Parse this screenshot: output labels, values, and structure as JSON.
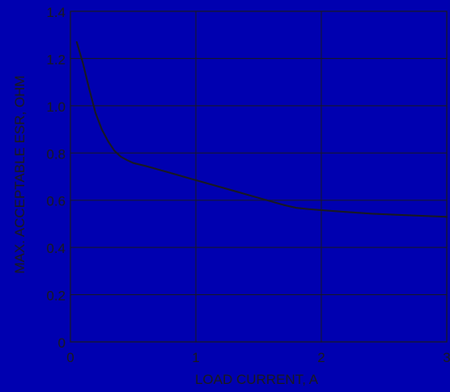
{
  "colors": {
    "background": "#0000b0",
    "ink": "#1a1a1a"
  },
  "chart_data": {
    "type": "line",
    "title": "",
    "xlabel": "LOAD CURRENT, A",
    "ylabel": "MAX. ACCEPTABLE ESR, OHM",
    "xlim": [
      0,
      3
    ],
    "ylim": [
      0,
      1.4
    ],
    "xticks": [
      0,
      1,
      2,
      3
    ],
    "xtick_labels": [
      "0",
      "1",
      "2",
      "3"
    ],
    "yticks": [
      0,
      0.2,
      0.4,
      0.6,
      0.8,
      1.0,
      1.2,
      1.4
    ],
    "ytick_labels": [
      "0",
      "0.2",
      "0.4",
      "0.6",
      "0.8",
      "1.0",
      "1.2",
      "1.4"
    ],
    "grid": true,
    "legend": "none",
    "series": [
      {
        "x": [
          0.05,
          0.1,
          0.15,
          0.2,
          0.25,
          0.3,
          0.35,
          0.4,
          0.45,
          0.5,
          0.6,
          0.7,
          0.8,
          0.9,
          1.0,
          1.1,
          1.2,
          1.3,
          1.4,
          1.5,
          1.6,
          1.7,
          1.8,
          1.9,
          2.0,
          2.2,
          2.4,
          2.6,
          2.8,
          3.0
        ],
        "y": [
          1.27,
          1.18,
          1.07,
          0.97,
          0.9,
          0.85,
          0.81,
          0.785,
          0.77,
          0.758,
          0.745,
          0.73,
          0.715,
          0.7,
          0.685,
          0.67,
          0.655,
          0.64,
          0.625,
          0.61,
          0.595,
          0.58,
          0.568,
          0.562,
          0.558,
          0.55,
          0.543,
          0.538,
          0.534,
          0.53
        ]
      }
    ]
  }
}
